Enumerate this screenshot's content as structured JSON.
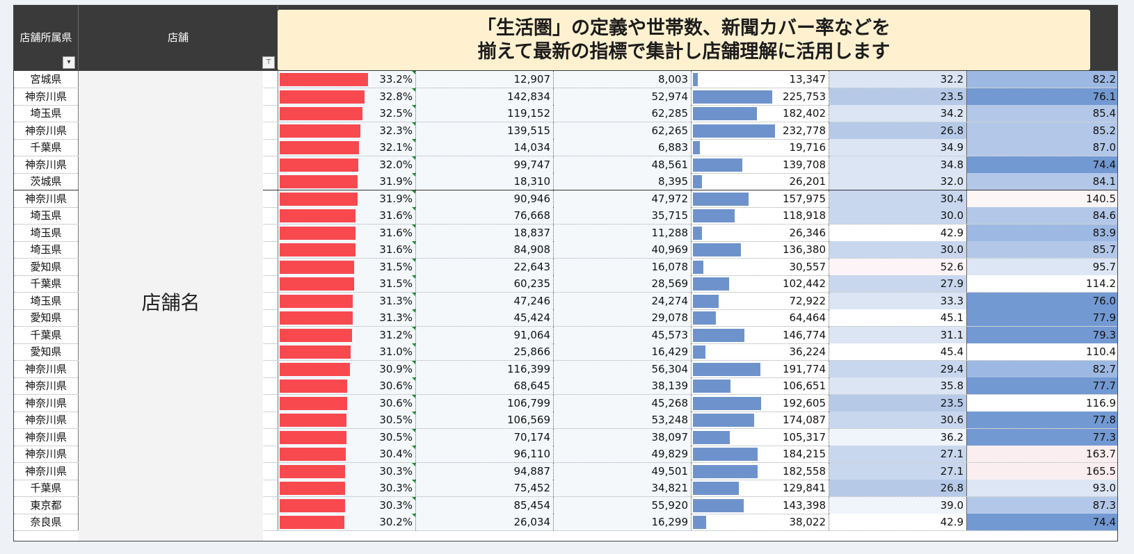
{
  "header": {
    "pref_label": "店舗所属県",
    "store_label": "店舗"
  },
  "banner": {
    "line1": "「生活圏」の定義や世帯数、新聞カバー率などを",
    "line2": "揃えて最新の指標で集計し店舗理解に活用します"
  },
  "store_placeholder": "店舗名",
  "colors": {
    "header_bg": "#3a3a3a",
    "rate_bar": "#f8494f",
    "pop_bar": "#6e93cc",
    "banner_bg": "#fff1cf"
  },
  "rows": [
    {
      "pref": "宮城県",
      "rate": "33.2%",
      "rate_v": 33.2,
      "hh": "12,907",
      "cov": "8,003",
      "pop": "13,347",
      "pop_v": 13347,
      "ratio": "32.2",
      "ratio_v": 32.2,
      "idx": "82.2",
      "idx_v": 82.2
    },
    {
      "pref": "神奈川県",
      "rate": "32.8%",
      "rate_v": 32.8,
      "hh": "142,834",
      "cov": "52,974",
      "pop": "225,753",
      "pop_v": 225753,
      "ratio": "23.5",
      "ratio_v": 23.5,
      "idx": "76.1",
      "idx_v": 76.1
    },
    {
      "pref": "埼玉県",
      "rate": "32.5%",
      "rate_v": 32.5,
      "hh": "119,152",
      "cov": "62,285",
      "pop": "182,402",
      "pop_v": 182402,
      "ratio": "34.2",
      "ratio_v": 34.2,
      "idx": "85.4",
      "idx_v": 85.4
    },
    {
      "pref": "神奈川県",
      "rate": "32.3%",
      "rate_v": 32.3,
      "hh": "139,515",
      "cov": "62,265",
      "pop": "232,778",
      "pop_v": 232778,
      "ratio": "26.8",
      "ratio_v": 26.8,
      "idx": "85.2",
      "idx_v": 85.2
    },
    {
      "pref": "千葉県",
      "rate": "32.1%",
      "rate_v": 32.1,
      "hh": "14,034",
      "cov": "6,883",
      "pop": "19,716",
      "pop_v": 19716,
      "ratio": "34.9",
      "ratio_v": 34.9,
      "idx": "87.0",
      "idx_v": 87.0
    },
    {
      "pref": "神奈川県",
      "rate": "32.0%",
      "rate_v": 32.0,
      "hh": "99,747",
      "cov": "48,561",
      "pop": "139,708",
      "pop_v": 139708,
      "ratio": "34.8",
      "ratio_v": 34.8,
      "idx": "74.4",
      "idx_v": 74.4
    },
    {
      "pref": "茨城県",
      "rate": "31.9%",
      "rate_v": 31.9,
      "hh": "18,310",
      "cov": "8,395",
      "pop": "26,201",
      "pop_v": 26201,
      "ratio": "32.0",
      "ratio_v": 32.0,
      "idx": "84.1",
      "idx_v": 84.1
    },
    {
      "pref": "神奈川県",
      "rate": "31.9%",
      "rate_v": 31.9,
      "hh": "90,946",
      "cov": "47,972",
      "pop": "157,975",
      "pop_v": 157975,
      "ratio": "30.4",
      "ratio_v": 30.4,
      "idx": "140.5",
      "idx_v": 140.5
    },
    {
      "pref": "埼玉県",
      "rate": "31.6%",
      "rate_v": 31.6,
      "hh": "76,668",
      "cov": "35,715",
      "pop": "118,918",
      "pop_v": 118918,
      "ratio": "30.0",
      "ratio_v": 30.0,
      "idx": "84.6",
      "idx_v": 84.6
    },
    {
      "pref": "埼玉県",
      "rate": "31.6%",
      "rate_v": 31.6,
      "hh": "18,837",
      "cov": "11,288",
      "pop": "26,346",
      "pop_v": 26346,
      "ratio": "42.9",
      "ratio_v": 42.9,
      "idx": "83.9",
      "idx_v": 83.9
    },
    {
      "pref": "埼玉県",
      "rate": "31.6%",
      "rate_v": 31.6,
      "hh": "84,908",
      "cov": "40,969",
      "pop": "136,380",
      "pop_v": 136380,
      "ratio": "30.0",
      "ratio_v": 30.0,
      "idx": "85.7",
      "idx_v": 85.7
    },
    {
      "pref": "愛知県",
      "rate": "31.5%",
      "rate_v": 31.5,
      "hh": "22,643",
      "cov": "16,078",
      "pop": "30,557",
      "pop_v": 30557,
      "ratio": "52.6",
      "ratio_v": 52.6,
      "idx": "95.7",
      "idx_v": 95.7
    },
    {
      "pref": "千葉県",
      "rate": "31.5%",
      "rate_v": 31.5,
      "hh": "60,235",
      "cov": "28,569",
      "pop": "102,442",
      "pop_v": 102442,
      "ratio": "27.9",
      "ratio_v": 27.9,
      "idx": "114.2",
      "idx_v": 114.2
    },
    {
      "pref": "埼玉県",
      "rate": "31.3%",
      "rate_v": 31.3,
      "hh": "47,246",
      "cov": "24,274",
      "pop": "72,922",
      "pop_v": 72922,
      "ratio": "33.3",
      "ratio_v": 33.3,
      "idx": "76.0",
      "idx_v": 76.0
    },
    {
      "pref": "愛知県",
      "rate": "31.3%",
      "rate_v": 31.3,
      "hh": "45,424",
      "cov": "29,078",
      "pop": "64,464",
      "pop_v": 64464,
      "ratio": "45.1",
      "ratio_v": 45.1,
      "idx": "77.9",
      "idx_v": 77.9
    },
    {
      "pref": "千葉県",
      "rate": "31.2%",
      "rate_v": 31.2,
      "hh": "91,064",
      "cov": "45,573",
      "pop": "146,774",
      "pop_v": 146774,
      "ratio": "31.1",
      "ratio_v": 31.1,
      "idx": "79.3",
      "idx_v": 79.3
    },
    {
      "pref": "愛知県",
      "rate": "31.0%",
      "rate_v": 31.0,
      "hh": "25,866",
      "cov": "16,429",
      "pop": "36,224",
      "pop_v": 36224,
      "ratio": "45.4",
      "ratio_v": 45.4,
      "idx": "110.4",
      "idx_v": 110.4
    },
    {
      "pref": "神奈川県",
      "rate": "30.9%",
      "rate_v": 30.9,
      "hh": "116,399",
      "cov": "56,304",
      "pop": "191,774",
      "pop_v": 191774,
      "ratio": "29.4",
      "ratio_v": 29.4,
      "idx": "82.7",
      "idx_v": 82.7
    },
    {
      "pref": "神奈川県",
      "rate": "30.6%",
      "rate_v": 30.6,
      "hh": "68,645",
      "cov": "38,139",
      "pop": "106,651",
      "pop_v": 106651,
      "ratio": "35.8",
      "ratio_v": 35.8,
      "idx": "77.7",
      "idx_v": 77.7
    },
    {
      "pref": "神奈川県",
      "rate": "30.6%",
      "rate_v": 30.6,
      "hh": "106,799",
      "cov": "45,268",
      "pop": "192,605",
      "pop_v": 192605,
      "ratio": "23.5",
      "ratio_v": 23.5,
      "idx": "116.9",
      "idx_v": 116.9
    },
    {
      "pref": "神奈川県",
      "rate": "30.5%",
      "rate_v": 30.5,
      "hh": "106,569",
      "cov": "53,248",
      "pop": "174,087",
      "pop_v": 174087,
      "ratio": "30.6",
      "ratio_v": 30.6,
      "idx": "77.8",
      "idx_v": 77.8
    },
    {
      "pref": "神奈川県",
      "rate": "30.5%",
      "rate_v": 30.5,
      "hh": "70,174",
      "cov": "38,097",
      "pop": "105,317",
      "pop_v": 105317,
      "ratio": "36.2",
      "ratio_v": 36.2,
      "idx": "77.3",
      "idx_v": 77.3
    },
    {
      "pref": "神奈川県",
      "rate": "30.4%",
      "rate_v": 30.4,
      "hh": "96,110",
      "cov": "49,829",
      "pop": "184,215",
      "pop_v": 184215,
      "ratio": "27.1",
      "ratio_v": 27.1,
      "idx": "163.7",
      "idx_v": 163.7
    },
    {
      "pref": "神奈川県",
      "rate": "30.3%",
      "rate_v": 30.3,
      "hh": "94,887",
      "cov": "49,501",
      "pop": "182,558",
      "pop_v": 182558,
      "ratio": "27.1",
      "ratio_v": 27.1,
      "idx": "165.5",
      "idx_v": 165.5
    },
    {
      "pref": "千葉県",
      "rate": "30.3%",
      "rate_v": 30.3,
      "hh": "75,452",
      "cov": "34,821",
      "pop": "129,841",
      "pop_v": 129841,
      "ratio": "26.8",
      "ratio_v": 26.8,
      "idx": "93.0",
      "idx_v": 93.0
    },
    {
      "pref": "東京都",
      "rate": "30.3%",
      "rate_v": 30.3,
      "hh": "85,454",
      "cov": "55,920",
      "pop": "143,398",
      "pop_v": 143398,
      "ratio": "39.0",
      "ratio_v": 39.0,
      "idx": "87.3",
      "idx_v": 87.3
    },
    {
      "pref": "奈良県",
      "rate": "30.2%",
      "rate_v": 30.2,
      "hh": "26,034",
      "cov": "16,299",
      "pop": "38,022",
      "pop_v": 38022,
      "ratio": "42.9",
      "ratio_v": 42.9,
      "idx": "74.4",
      "idx_v": 74.4
    }
  ]
}
